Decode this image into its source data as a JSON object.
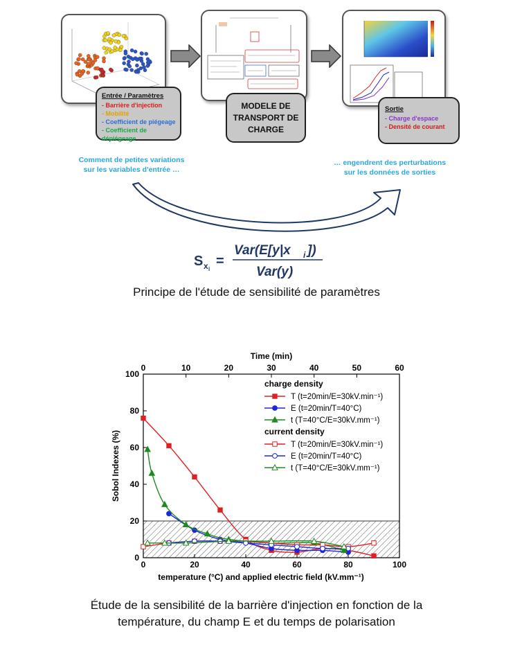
{
  "input_box": {
    "title": "Entrée / Paramètres",
    "items": [
      {
        "label": "- Barrière d'injection",
        "color": "#e01b1b"
      },
      {
        "label": "- Mobilité",
        "color": "#e6a000"
      },
      {
        "label": "- Coefficient de piégeage",
        "color": "#2a6fd6"
      },
      {
        "label": "- Coefficient de dépiégeage",
        "color": "#1aa84a"
      }
    ]
  },
  "model_box": {
    "line1": "MODELE DE",
    "line2": "TRANSPORT DE",
    "line3": "CHARGE"
  },
  "output_box": {
    "title": "Sortie",
    "items": [
      {
        "label": "- Charge d'espace",
        "color": "#8b35c8"
      },
      {
        "label": "- Densité de courant",
        "color": "#cc1f1f"
      }
    ]
  },
  "left_caption": {
    "line1": "Comment de petites variations",
    "line2": "sur les variables d'entrée …"
  },
  "right_caption": {
    "line1": "… engendrent des perturbations",
    "line2": "sur les données de sorties"
  },
  "formula": {
    "lhs": "S",
    "sub": "x",
    "subsub": "i",
    "numerator": "Var(E[y|x",
    "num_sub": "i",
    "num_end": "])",
    "denominator": "Var(y)"
  },
  "caption1": "Principe de l'étude de sensibilité de paramètres",
  "caption2": {
    "line1": "Étude de la sensibilité de la barrière d'injection en fonction de la",
    "line2": "température, du champ E et du temps de polarisation"
  },
  "chart_data": {
    "type": "line",
    "xlabel": "temperature (°C) and applied electric field (kV.mm⁻¹)",
    "x2label": "Time (min)",
    "ylabel": "Sobol Indexes (%)",
    "xlim": [
      0,
      100
    ],
    "x2lim": [
      0,
      60
    ],
    "ylim": [
      0,
      100
    ],
    "xticks": [
      0,
      20,
      40,
      60,
      80,
      100
    ],
    "x2ticks": [
      0,
      10,
      20,
      30,
      40,
      50,
      60
    ],
    "yticks": [
      0,
      20,
      40,
      60,
      80,
      100
    ],
    "hatched_band": [
      0,
      20
    ],
    "legend_groups": [
      {
        "title": "charge density",
        "entries": [
          0,
          1,
          2
        ]
      },
      {
        "title": "current density",
        "entries": [
          3,
          4,
          5
        ]
      }
    ],
    "series": [
      {
        "name": "T (t=20min/E=30kV.min⁻¹)",
        "color": "#e02020",
        "marker": "square",
        "filled": true,
        "axis": "bottom",
        "x": [
          0,
          10,
          20,
          30,
          40,
          50,
          60,
          70,
          80,
          90
        ],
        "y": [
          76,
          61,
          44,
          26,
          10,
          4,
          3,
          5,
          4,
          1
        ]
      },
      {
        "name": "E (t=20min/T=40°C)",
        "color": "#1d28d8",
        "marker": "circle",
        "filled": true,
        "axis": "bottom",
        "x": [
          10,
          20,
          30,
          40,
          50,
          60,
          70,
          80
        ],
        "y": [
          24,
          15,
          10,
          8,
          5,
          4,
          4,
          3
        ]
      },
      {
        "name": "t (T=40°C/E=30kV.mm⁻¹)",
        "color": "#1f8a1f",
        "marker": "triangle",
        "filled": true,
        "axis": "top",
        "x": [
          1,
          2,
          5,
          10,
          15,
          20,
          30,
          40,
          47
        ],
        "y": [
          59,
          46,
          29,
          18,
          13,
          10,
          8,
          8,
          4
        ]
      },
      {
        "name": "T (t=20min/E=30kV.min⁻¹)",
        "color": "#e02020",
        "marker": "square",
        "filled": false,
        "axis": "bottom",
        "x": [
          0,
          10,
          20,
          30,
          40,
          50,
          60,
          70,
          80,
          90
        ],
        "y": [
          6,
          8,
          9,
          9,
          9,
          8,
          7,
          7,
          6,
          8
        ]
      },
      {
        "name": "E (t=20min/T=40°C)",
        "color": "#1d28d8",
        "marker": "circle",
        "filled": false,
        "axis": "bottom",
        "x": [
          10,
          20,
          30,
          40,
          50,
          60,
          70,
          80
        ],
        "y": [
          8,
          9,
          9,
          8,
          7,
          6,
          5,
          5
        ]
      },
      {
        "name": "t (T=40°C/E=30kV.mm⁻¹)",
        "color": "#1f8a1f",
        "marker": "triangle",
        "filled": false,
        "axis": "top",
        "x": [
          1,
          5,
          10,
          20,
          30,
          40,
          47
        ],
        "y": [
          8,
          8,
          8,
          9,
          9,
          9,
          6
        ]
      }
    ]
  }
}
